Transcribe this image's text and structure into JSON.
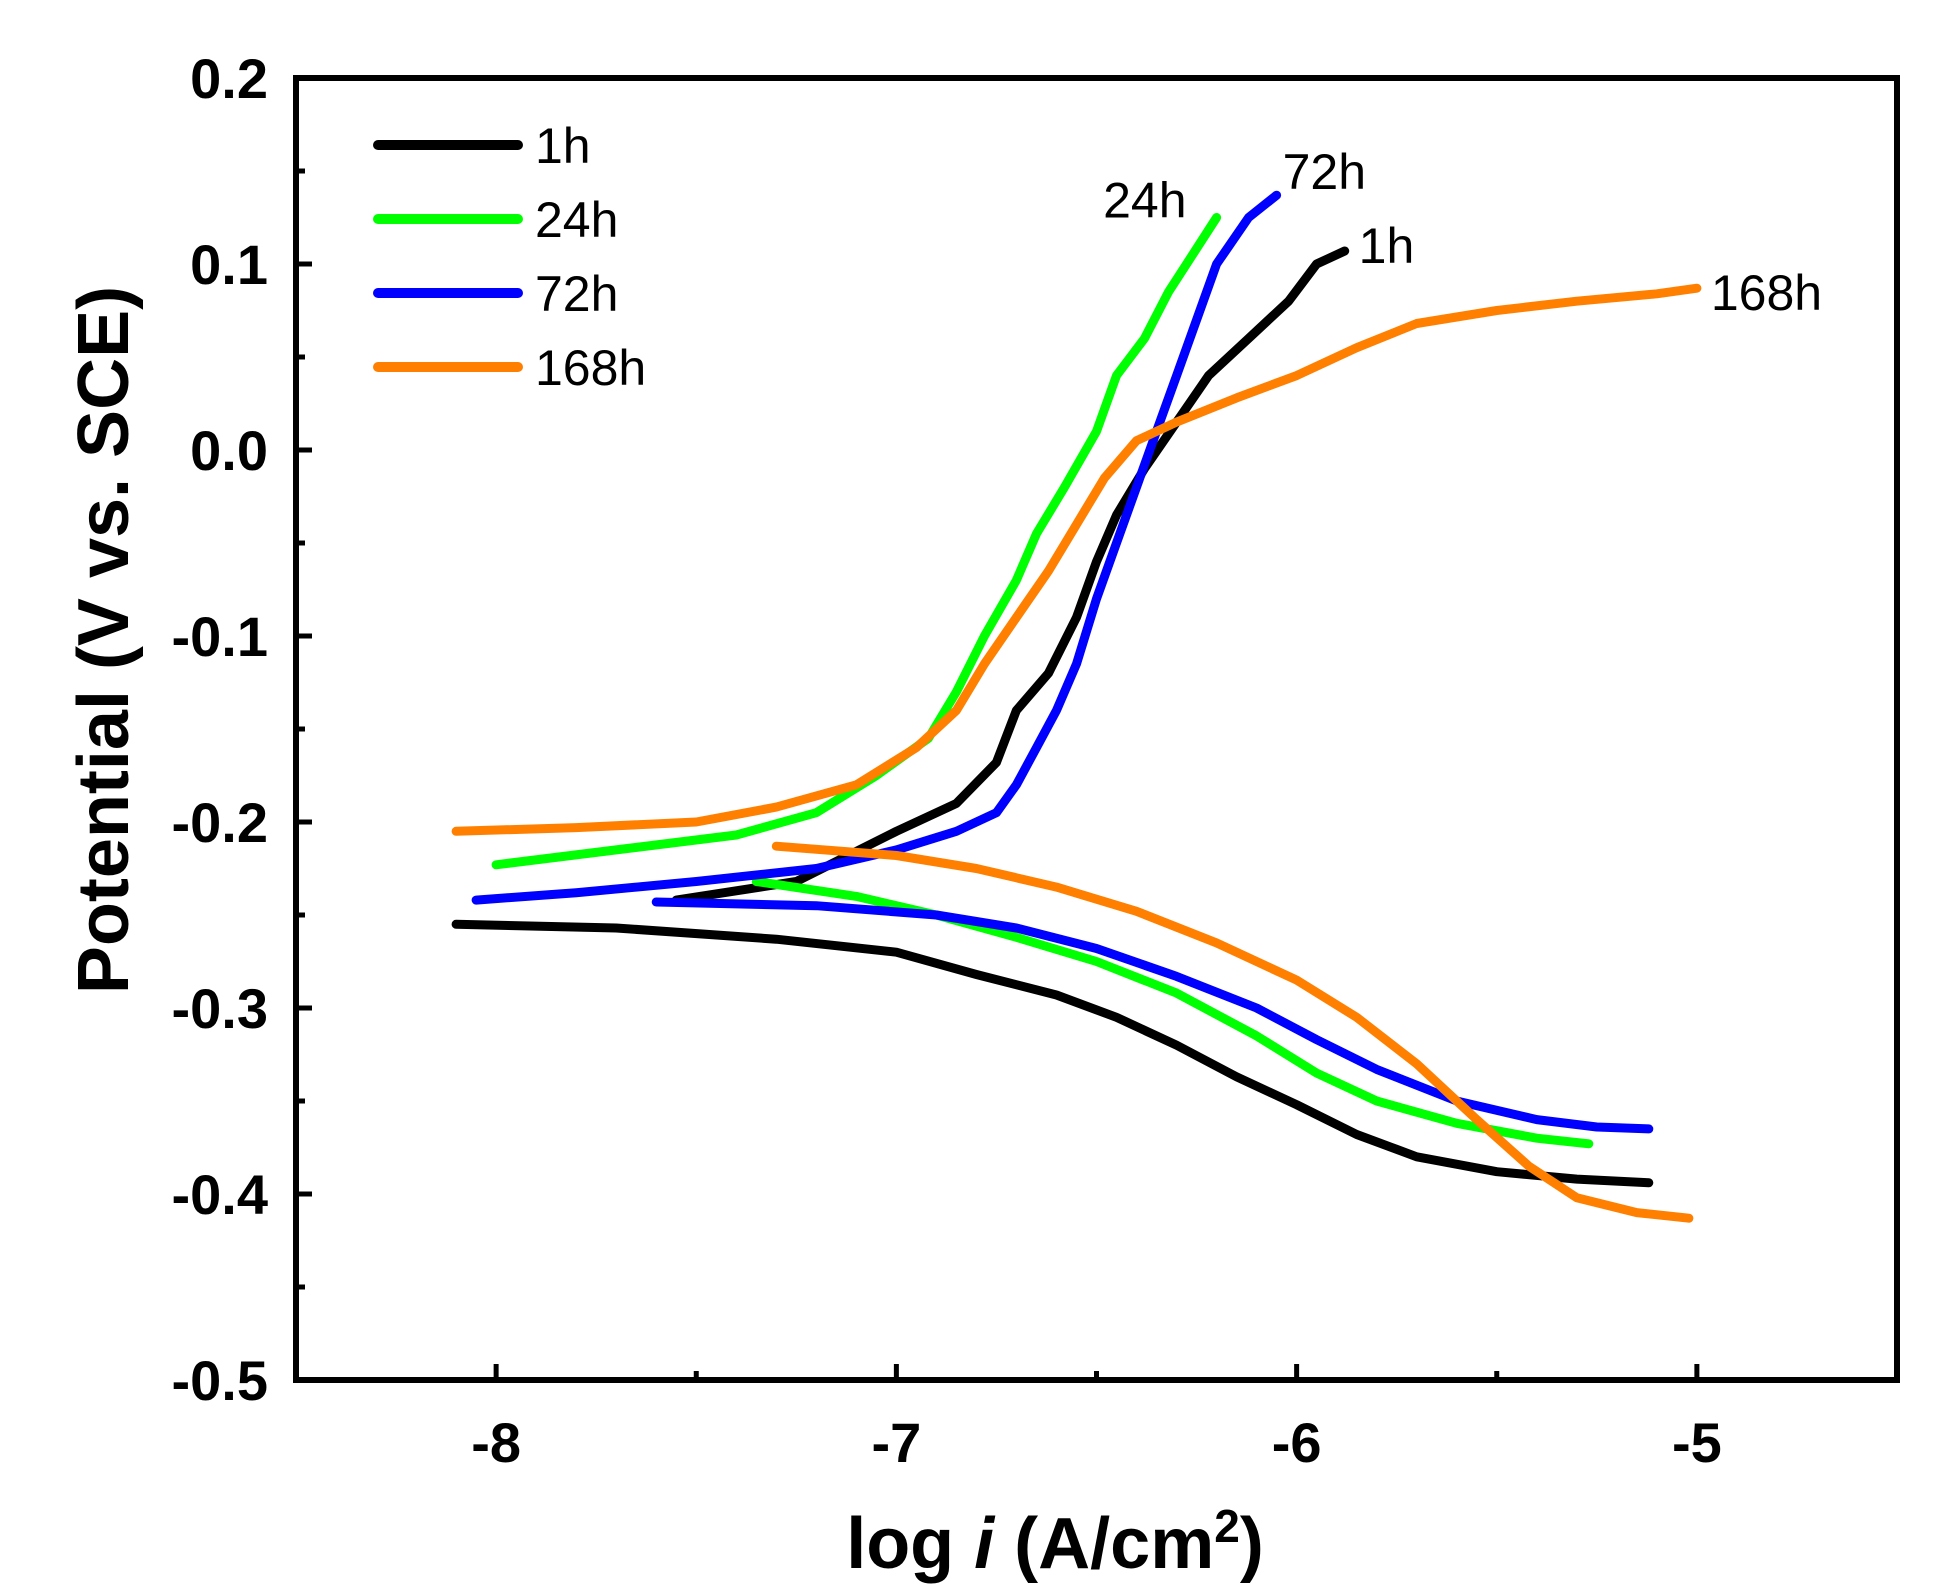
{
  "chart_data": {
    "type": "line",
    "title": "",
    "xlabel": "log i (A/cm2)",
    "xlabel_parts": {
      "prefix": "log ",
      "italic": "i",
      "middle": " (A/cm",
      "sup": "2",
      "suffix": ")"
    },
    "ylabel": "Potential (V vs. SCE)",
    "xlim": [
      -8.5,
      -4.5
    ],
    "ylim": [
      -0.5,
      0.2
    ],
    "xticks": [
      -8,
      -7,
      -6,
      -5
    ],
    "xtick_labels": [
      "-8",
      "-7",
      "-6",
      "-5"
    ],
    "yticks": [
      -0.5,
      -0.4,
      -0.3,
      -0.2,
      -0.1,
      0.0,
      0.1,
      0.2
    ],
    "ytick_labels": [
      "-0.5",
      "-0.4",
      "-0.3",
      "-0.2",
      "-0.1",
      "0.0",
      "0.1",
      "0.2"
    ],
    "grid": false,
    "legend_position": "top-left",
    "series": [
      {
        "name": "1h",
        "color": "#000000",
        "end_label": "1h",
        "anodic": [
          [
            -7.55,
            -0.242
          ],
          [
            -7.25,
            -0.232
          ],
          [
            -7.0,
            -0.205
          ],
          [
            -6.85,
            -0.19
          ],
          [
            -6.75,
            -0.168
          ],
          [
            -6.7,
            -0.14
          ],
          [
            -6.62,
            -0.12
          ],
          [
            -6.55,
            -0.09
          ],
          [
            -6.5,
            -0.06
          ],
          [
            -6.45,
            -0.035
          ],
          [
            -6.38,
            -0.01
          ],
          [
            -6.3,
            0.015
          ],
          [
            -6.22,
            0.04
          ],
          [
            -6.12,
            0.06
          ],
          [
            -6.02,
            0.08
          ],
          [
            -5.95,
            0.1
          ],
          [
            -5.88,
            0.107
          ]
        ],
        "cathodic": [
          [
            -8.1,
            -0.255
          ],
          [
            -7.7,
            -0.257
          ],
          [
            -7.3,
            -0.263
          ],
          [
            -7.0,
            -0.27
          ],
          [
            -6.8,
            -0.282
          ],
          [
            -6.6,
            -0.293
          ],
          [
            -6.45,
            -0.305
          ],
          [
            -6.3,
            -0.32
          ],
          [
            -6.15,
            -0.337
          ],
          [
            -6.0,
            -0.352
          ],
          [
            -5.85,
            -0.368
          ],
          [
            -5.7,
            -0.38
          ],
          [
            -5.5,
            -0.388
          ],
          [
            -5.3,
            -0.392
          ],
          [
            -5.12,
            -0.394
          ]
        ]
      },
      {
        "name": "24h",
        "color": "#00ff00",
        "end_label": "24h",
        "anodic": [
          [
            -8.0,
            -0.223
          ],
          [
            -7.7,
            -0.215
          ],
          [
            -7.4,
            -0.207
          ],
          [
            -7.2,
            -0.195
          ],
          [
            -7.05,
            -0.175
          ],
          [
            -6.92,
            -0.155
          ],
          [
            -6.85,
            -0.13
          ],
          [
            -6.78,
            -0.1
          ],
          [
            -6.7,
            -0.07
          ],
          [
            -6.65,
            -0.045
          ],
          [
            -6.58,
            -0.02
          ],
          [
            -6.5,
            0.01
          ],
          [
            -6.45,
            0.04
          ],
          [
            -6.38,
            0.06
          ],
          [
            -6.32,
            0.085
          ],
          [
            -6.26,
            0.105
          ],
          [
            -6.2,
            0.125
          ]
        ],
        "cathodic": [
          [
            -7.35,
            -0.232
          ],
          [
            -7.1,
            -0.24
          ],
          [
            -6.9,
            -0.25
          ],
          [
            -6.7,
            -0.262
          ],
          [
            -6.5,
            -0.275
          ],
          [
            -6.3,
            -0.292
          ],
          [
            -6.1,
            -0.315
          ],
          [
            -5.95,
            -0.335
          ],
          [
            -5.8,
            -0.35
          ],
          [
            -5.6,
            -0.362
          ],
          [
            -5.4,
            -0.37
          ],
          [
            -5.27,
            -0.373
          ]
        ]
      },
      {
        "name": "72h",
        "color": "#0000ff",
        "end_label": "72h",
        "anodic": [
          [
            -8.05,
            -0.242
          ],
          [
            -7.8,
            -0.238
          ],
          [
            -7.5,
            -0.232
          ],
          [
            -7.2,
            -0.225
          ],
          [
            -7.0,
            -0.215
          ],
          [
            -6.85,
            -0.205
          ],
          [
            -6.75,
            -0.195
          ],
          [
            -6.7,
            -0.18
          ],
          [
            -6.65,
            -0.16
          ],
          [
            -6.6,
            -0.14
          ],
          [
            -6.55,
            -0.115
          ],
          [
            -6.5,
            -0.08
          ],
          [
            -6.45,
            -0.05
          ],
          [
            -6.4,
            -0.02
          ],
          [
            -6.35,
            0.01
          ],
          [
            -6.3,
            0.04
          ],
          [
            -6.25,
            0.07
          ],
          [
            -6.2,
            0.1
          ],
          [
            -6.12,
            0.125
          ],
          [
            -6.05,
            0.137
          ]
        ],
        "cathodic": [
          [
            -7.6,
            -0.243
          ],
          [
            -7.2,
            -0.245
          ],
          [
            -6.9,
            -0.25
          ],
          [
            -6.7,
            -0.257
          ],
          [
            -6.5,
            -0.268
          ],
          [
            -6.3,
            -0.283
          ],
          [
            -6.1,
            -0.3
          ],
          [
            -5.95,
            -0.317
          ],
          [
            -5.8,
            -0.333
          ],
          [
            -5.6,
            -0.35
          ],
          [
            -5.4,
            -0.36
          ],
          [
            -5.25,
            -0.364
          ],
          [
            -5.12,
            -0.365
          ]
        ]
      },
      {
        "name": "168h",
        "color": "#ff8000",
        "end_label": "168h",
        "anodic": [
          [
            -8.1,
            -0.205
          ],
          [
            -7.8,
            -0.203
          ],
          [
            -7.5,
            -0.2
          ],
          [
            -7.3,
            -0.192
          ],
          [
            -7.1,
            -0.18
          ],
          [
            -6.95,
            -0.16
          ],
          [
            -6.85,
            -0.14
          ],
          [
            -6.78,
            -0.115
          ],
          [
            -6.7,
            -0.09
          ],
          [
            -6.62,
            -0.065
          ],
          [
            -6.55,
            -0.04
          ],
          [
            -6.48,
            -0.015
          ],
          [
            -6.4,
            0.005
          ],
          [
            -6.3,
            0.015
          ],
          [
            -6.15,
            0.028
          ],
          [
            -6.0,
            0.04
          ],
          [
            -5.85,
            0.055
          ],
          [
            -5.7,
            0.068
          ],
          [
            -5.5,
            0.075
          ],
          [
            -5.3,
            0.08
          ],
          [
            -5.1,
            0.084
          ],
          [
            -5.0,
            0.087
          ]
        ],
        "cathodic": [
          [
            -7.3,
            -0.213
          ],
          [
            -7.0,
            -0.218
          ],
          [
            -6.8,
            -0.225
          ],
          [
            -6.6,
            -0.235
          ],
          [
            -6.4,
            -0.248
          ],
          [
            -6.2,
            -0.265
          ],
          [
            -6.0,
            -0.285
          ],
          [
            -5.85,
            -0.305
          ],
          [
            -5.7,
            -0.33
          ],
          [
            -5.55,
            -0.36
          ],
          [
            -5.42,
            -0.385
          ],
          [
            -5.3,
            -0.402
          ],
          [
            -5.15,
            -0.41
          ],
          [
            -5.02,
            -0.413
          ]
        ]
      }
    ]
  }
}
